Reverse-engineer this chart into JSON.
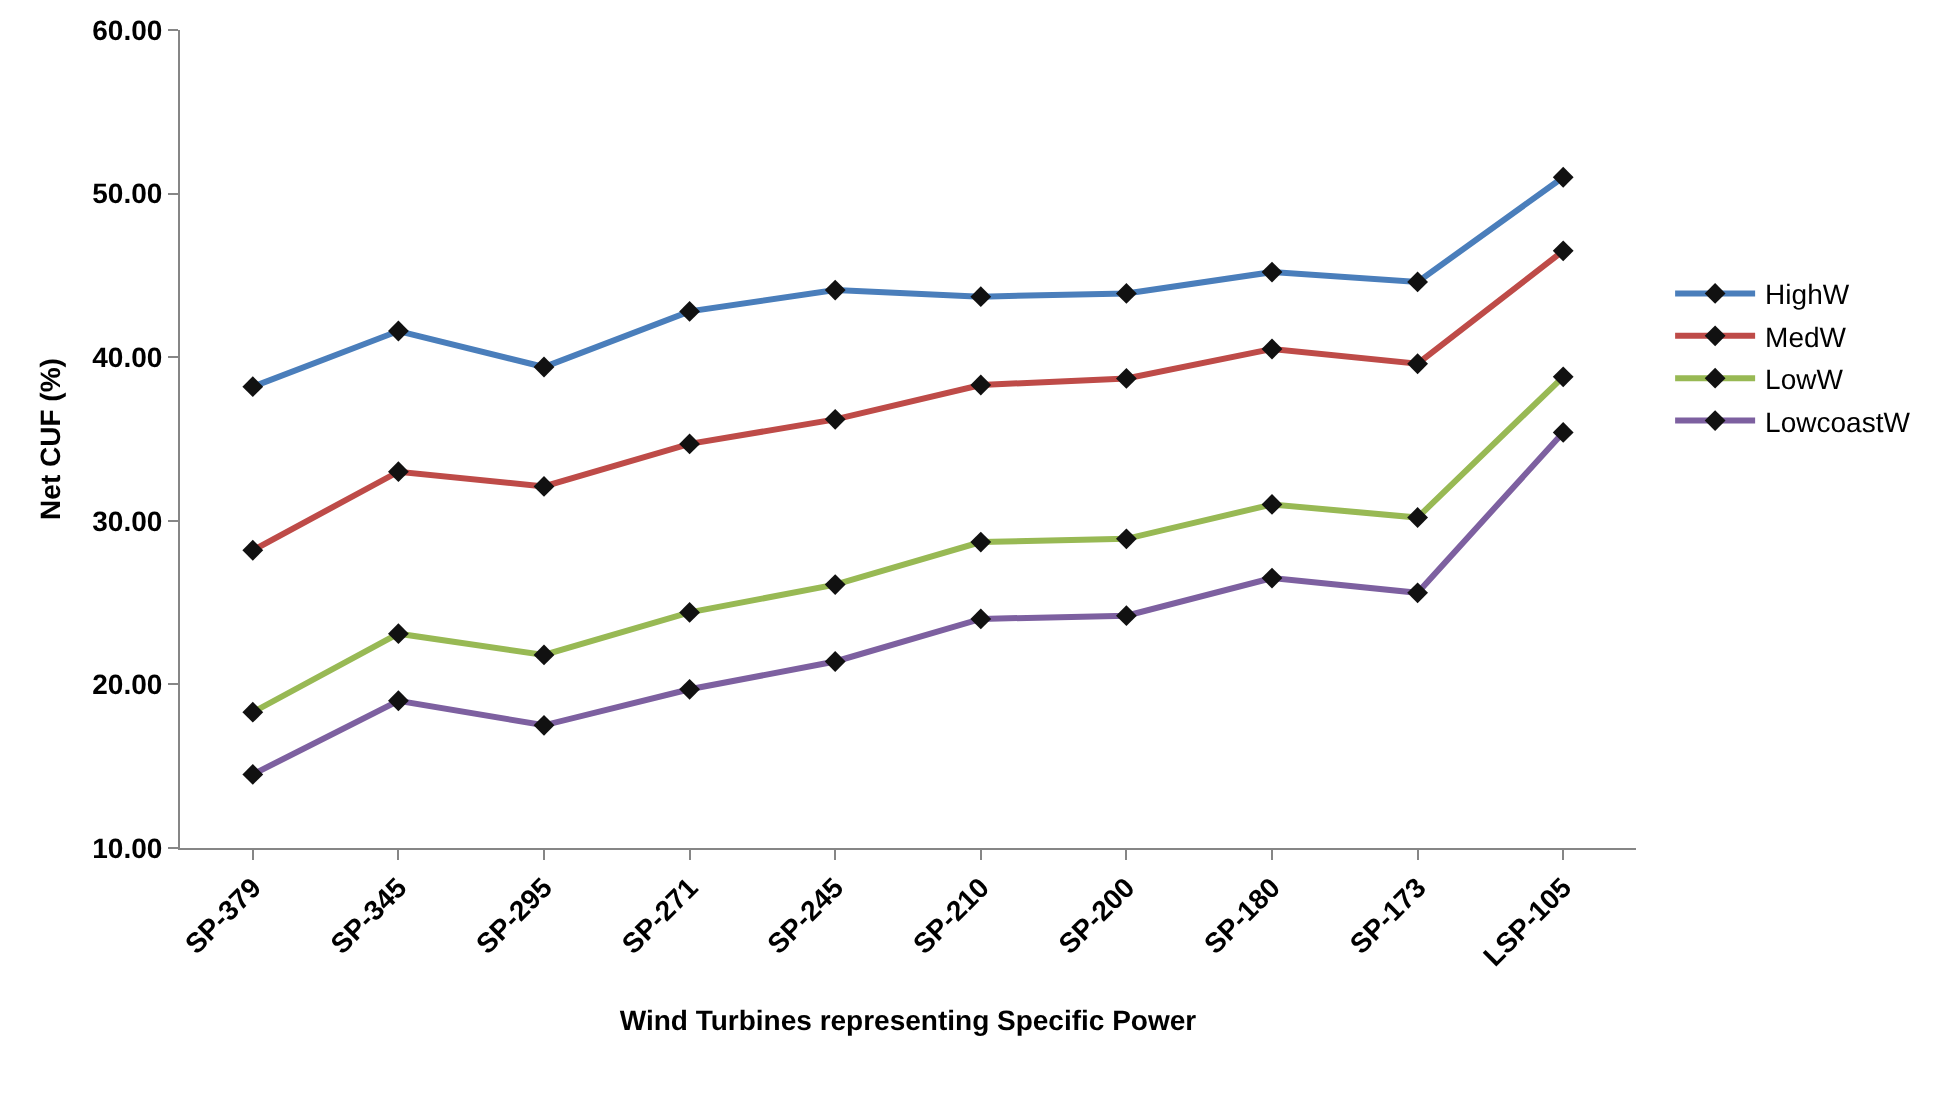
{
  "chart_data": {
    "type": "line",
    "xlabel": "Wind Turbines representing Specific Power",
    "ylabel": "Net CUF (%)",
    "categories": [
      "SP-379",
      "SP-345",
      "SP-295",
      "SP-271",
      "SP-245",
      "SP-210",
      "SP-200",
      "SP-180",
      "SP-173",
      "LSP-105"
    ],
    "series": [
      {
        "name": "HighW",
        "color": "#4a7ebb",
        "values": [
          38.2,
          41.6,
          39.4,
          42.8,
          44.1,
          43.7,
          43.9,
          45.2,
          44.6,
          51.0
        ]
      },
      {
        "name": "MedW",
        "color": "#be4b48",
        "values": [
          28.2,
          33.0,
          32.1,
          34.7,
          36.2,
          38.3,
          38.7,
          40.5,
          39.6,
          46.5
        ]
      },
      {
        "name": "LowW",
        "color": "#98b954",
        "values": [
          18.3,
          23.1,
          21.8,
          24.4,
          26.1,
          28.7,
          28.9,
          31.0,
          30.2,
          38.8
        ]
      },
      {
        "name": "LowcoastW",
        "color": "#7d60a0",
        "values": [
          14.5,
          19.0,
          17.5,
          19.7,
          21.4,
          24.0,
          24.2,
          26.5,
          25.6,
          35.4
        ]
      }
    ],
    "ylim": [
      10,
      60
    ],
    "yticks": [
      {
        "value": 10,
        "label": "10.00"
      },
      {
        "value": 20,
        "label": "20.00"
      },
      {
        "value": 30,
        "label": "30.00"
      },
      {
        "value": 40,
        "label": "40.00"
      },
      {
        "value": 50,
        "label": "50.00"
      },
      {
        "value": 60,
        "label": "60.00"
      }
    ],
    "grid": false,
    "legend": "right",
    "marker": "diamond",
    "line_style": "solid"
  }
}
